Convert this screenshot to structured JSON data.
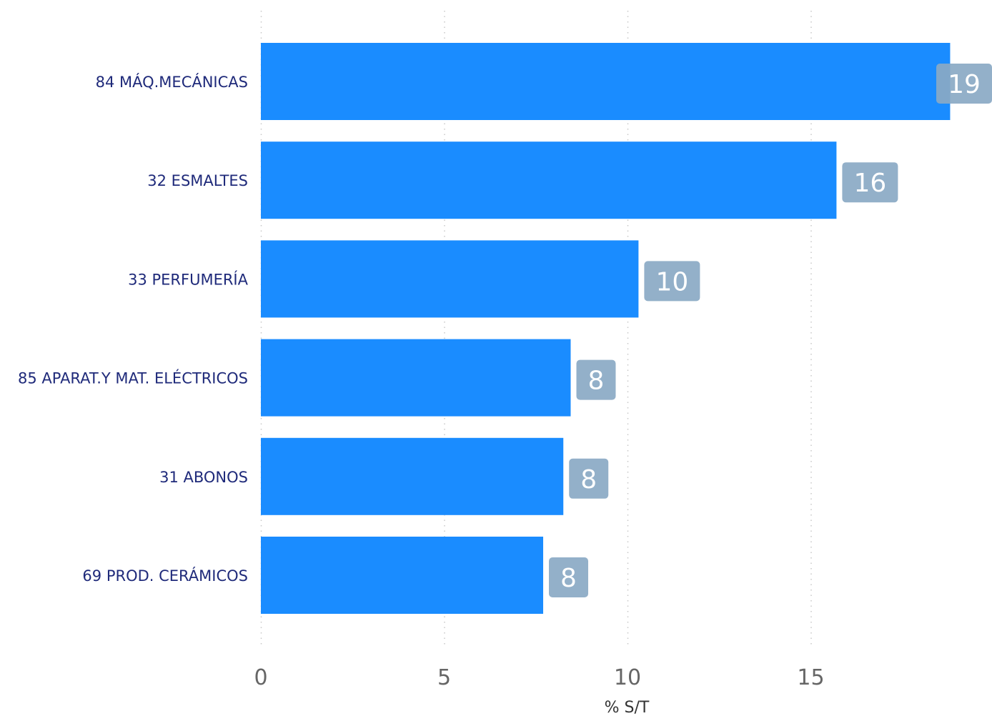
{
  "chart_data": {
    "type": "bar",
    "orientation": "horizontal",
    "categories": [
      "84 MÁQ.MECÁNICAS",
      "32 ESMALTES",
      "33 PERFUMERÍA",
      "85 APARAT.Y MAT. ELÉCTRICOS",
      "31 ABONOS",
      "69 PROD. CERÁMICOS"
    ],
    "values": [
      18.8,
      15.7,
      10.3,
      8.45,
      8.25,
      7.7
    ],
    "value_labels": [
      "19",
      "16",
      "10",
      "8",
      "8",
      "8"
    ],
    "xlabel": "% S/T",
    "ylabel": "",
    "xlim": [
      0,
      19.5
    ],
    "xticks": [
      0,
      5,
      10,
      15
    ],
    "grid": "vertical dotted",
    "colors": {
      "bar": "#1a8cff",
      "label_box": "#8aa9c4",
      "category_text": "#1f2a7a",
      "tick_text": "#666666",
      "grid": "#c8c8c8"
    }
  }
}
